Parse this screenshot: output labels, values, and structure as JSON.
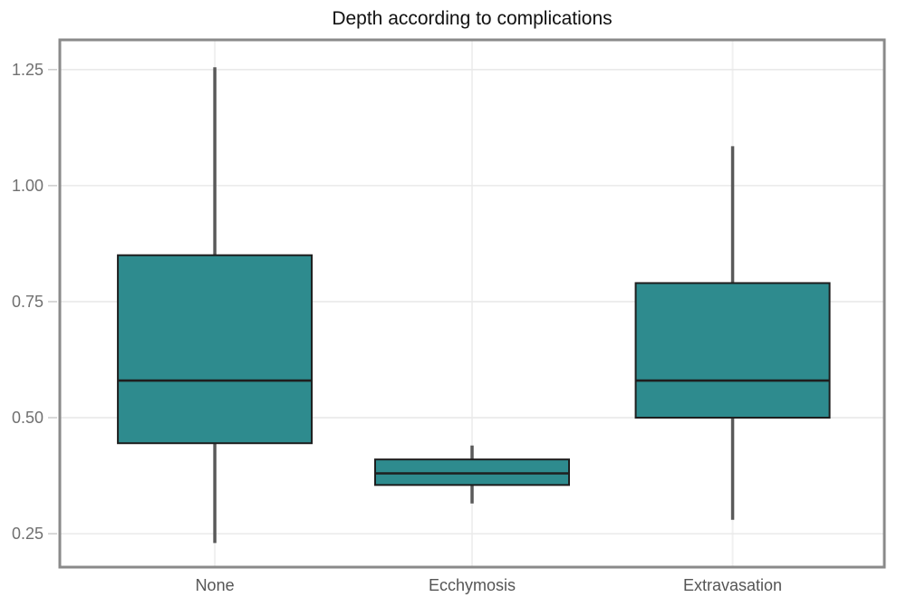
{
  "chart_data": {
    "type": "box",
    "title": "Depth according to complications",
    "categories": [
      "None",
      "Ecchymosis",
      "Extravasation"
    ],
    "series": [
      {
        "name": "None",
        "whisker_low": 0.23,
        "q1": 0.445,
        "median": 0.58,
        "q3": 0.85,
        "whisker_high": 1.255
      },
      {
        "name": "Ecchymosis",
        "whisker_low": 0.315,
        "q1": 0.355,
        "median": 0.38,
        "q3": 0.41,
        "whisker_high": 0.44
      },
      {
        "name": "Extravasation",
        "whisker_low": 0.28,
        "q1": 0.5,
        "median": 0.58,
        "q3": 0.79,
        "whisker_high": 1.085
      }
    ],
    "xlabel": "",
    "ylabel": "",
    "yticks": [
      0.25,
      0.5,
      0.75,
      1.0,
      1.25
    ],
    "ytick_labels": [
      "0.25",
      "0.50",
      "0.75",
      "1.00",
      "1.25"
    ],
    "ylim": [
      0.178,
      1.314
    ],
    "grid": true,
    "legend": false,
    "colors": {
      "box_fill": "#2e8b8e",
      "box_border": "#1e1e1e",
      "median": "#1e1e1e",
      "whisker": "#5a5a5a",
      "panel_border": "#8a8a8a",
      "gridline": "#e9e9e9",
      "vertical_gridline": "#f0f0f0",
      "tick": "#cfcfcf",
      "y_tick_label": "#707070",
      "x_tick_label": "#555555",
      "title": "#111111",
      "background": "#ffffff"
    }
  }
}
